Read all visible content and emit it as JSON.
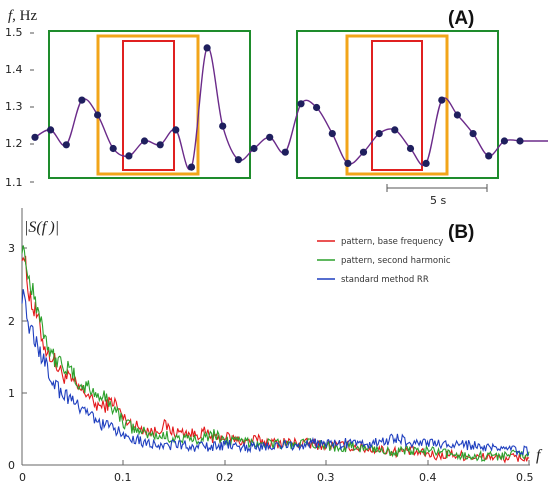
{
  "panel_a": {
    "label": "(A)",
    "ylabel_f": "f",
    "ylabel_unit": ", Hz",
    "yticks": [
      "1.1",
      "1.2",
      "1.3",
      "1.4",
      "1.5"
    ],
    "scalebar_label": "5 s",
    "colors": {
      "curve": "#6b2b8a",
      "dots": "#1f1f5e",
      "green_box": "#1e8c2c",
      "orange_box": "#f2a51a",
      "red_box": "#e02020"
    }
  },
  "panel_b": {
    "label": "(B)",
    "ylabel": "|S(f )|",
    "xlabel": "f",
    "xticks": [
      "0",
      "0.1",
      "0.2",
      "0.3",
      "0.4",
      "0.5"
    ],
    "yticks": [
      "0",
      "1",
      "2",
      "3"
    ]
  },
  "chart_data": [
    {
      "type": "line",
      "title": "",
      "xlabel": "",
      "ylabel": "f, Hz",
      "ylim": [
        1.1,
        1.5
      ],
      "x": [
        0,
        1,
        2,
        3,
        4,
        5,
        6,
        7,
        8,
        9,
        10,
        11,
        12,
        13,
        14,
        15,
        16,
        17,
        18,
        19,
        20,
        21,
        22,
        23,
        24,
        25,
        26,
        27,
        28,
        29,
        30,
        31
      ],
      "series": [
        {
          "values": [
            1.22,
            1.24,
            1.2,
            1.32,
            1.28,
            1.19,
            1.17,
            1.21,
            1.2,
            1.24,
            1.14,
            1.46,
            1.25,
            1.16,
            1.19,
            1.22,
            1.18,
            1.31,
            1.3,
            1.23,
            1.15,
            1.18,
            1.23,
            1.24,
            1.19,
            1.15,
            1.32,
            1.28,
            1.23,
            1.17,
            1.21,
            1.21
          ]
        }
      ],
      "scale_bar": "5 s",
      "grid": false
    },
    {
      "type": "line",
      "title": "",
      "xlabel": "f",
      "ylabel": "|S(f)|",
      "xlim": [
        0,
        0.5
      ],
      "ylim": [
        0,
        3.2
      ],
      "legend": "top-right",
      "grid": false,
      "x": [
        0,
        0.0025,
        0.005,
        0.0075,
        0.01,
        0.015,
        0.02,
        0.025,
        0.03,
        0.035,
        0.04,
        0.05,
        0.06,
        0.065,
        0.07,
        0.08,
        0.09,
        0.1,
        0.11,
        0.12,
        0.13,
        0.14,
        0.15,
        0.16,
        0.17,
        0.18,
        0.19,
        0.2,
        0.21,
        0.22,
        0.23,
        0.24,
        0.25,
        0.26,
        0.27,
        0.28,
        0.29,
        0.3,
        0.31,
        0.32,
        0.33,
        0.34,
        0.35,
        0.36,
        0.37,
        0.38,
        0.39,
        0.4,
        0.41,
        0.42,
        0.43,
        0.44,
        0.45,
        0.46,
        0.47,
        0.48,
        0.49,
        0.5
      ],
      "series": [
        {
          "name": "pattern, base frequency",
          "color": "#e31a1c",
          "values": [
            3.0,
            2.85,
            2.55,
            2.4,
            2.2,
            2.05,
            1.75,
            1.55,
            1.5,
            1.35,
            1.25,
            1.15,
            1.0,
            1.0,
            0.85,
            0.8,
            0.9,
            0.65,
            0.55,
            0.5,
            0.45,
            0.55,
            0.45,
            0.45,
            0.42,
            0.45,
            0.35,
            0.4,
            0.35,
            0.32,
            0.35,
            0.32,
            0.3,
            0.32,
            0.3,
            0.3,
            0.28,
            0.28,
            0.27,
            0.26,
            0.25,
            0.22,
            0.22,
            0.2,
            0.18,
            0.2,
            0.17,
            0.15,
            0.12,
            0.15,
            0.14,
            0.12,
            0.1,
            0.12,
            0.1,
            0.1,
            0.1,
            0.1
          ]
        },
        {
          "name": "pattern, second harmonic",
          "color": "#2ca02c",
          "values": [
            3.1,
            2.95,
            2.7,
            2.55,
            2.5,
            2.2,
            1.95,
            1.7,
            1.5,
            1.45,
            1.4,
            1.25,
            1.05,
            1.1,
            1.0,
            0.95,
            0.8,
            0.6,
            0.5,
            0.45,
            0.4,
            0.4,
            0.38,
            0.35,
            0.35,
            0.4,
            0.42,
            0.35,
            0.32,
            0.32,
            0.32,
            0.3,
            0.3,
            0.28,
            0.28,
            0.3,
            0.28,
            0.27,
            0.25,
            0.25,
            0.25,
            0.22,
            0.22,
            0.2,
            0.18,
            0.2,
            0.18,
            0.2,
            0.17,
            0.15,
            0.15,
            0.12,
            0.12,
            0.12,
            0.13,
            0.15,
            0.15,
            0.15
          ]
        },
        {
          "name": "standard method RR",
          "color": "#1f3fbf",
          "values": [
            2.4,
            2.3,
            2.05,
            1.9,
            1.8,
            1.7,
            1.45,
            1.35,
            1.2,
            1.05,
            1.0,
            0.9,
            0.7,
            0.75,
            0.65,
            0.55,
            0.5,
            0.42,
            0.38,
            0.32,
            0.3,
            0.28,
            0.27,
            0.27,
            0.25,
            0.25,
            0.25,
            0.27,
            0.28,
            0.25,
            0.25,
            0.25,
            0.25,
            0.28,
            0.28,
            0.28,
            0.3,
            0.3,
            0.28,
            0.3,
            0.28,
            0.3,
            0.3,
            0.35,
            0.38,
            0.32,
            0.32,
            0.3,
            0.28,
            0.28,
            0.27,
            0.28,
            0.25,
            0.22,
            0.22,
            0.22,
            0.2,
            0.2
          ]
        }
      ]
    }
  ]
}
